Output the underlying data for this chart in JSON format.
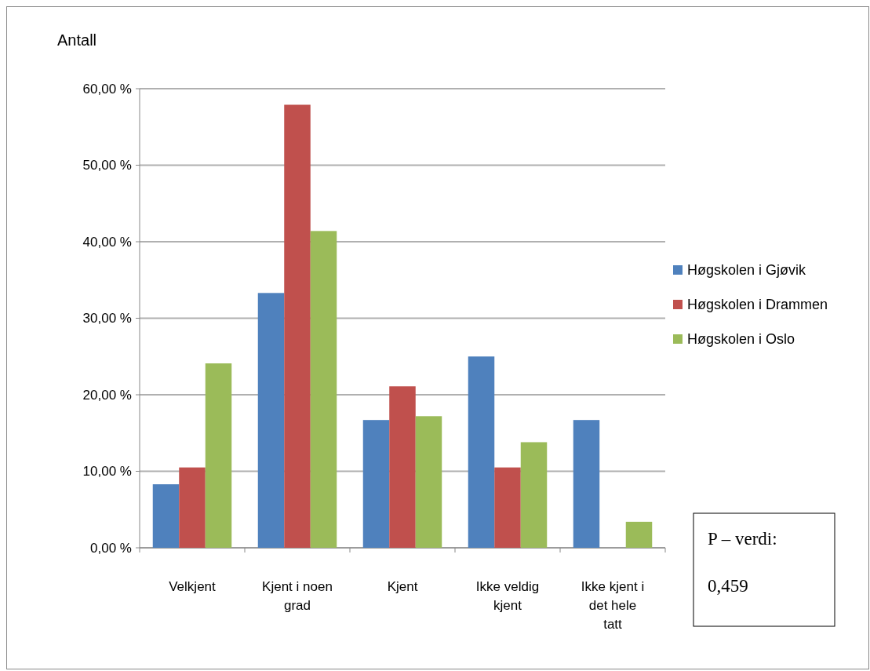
{
  "chart_data": {
    "type": "bar",
    "ylabel": "Antall",
    "categories": [
      "Velkjent",
      "Kjent i noen grad",
      "Kjent",
      "Ikke veldig kjent",
      "Ikke kjent i det hele tatt"
    ],
    "series": [
      {
        "name": "Høgskolen i Gjøvik",
        "color": "#4f81bd",
        "values": [
          8.3,
          33.3,
          16.7,
          25.0,
          16.7
        ]
      },
      {
        "name": "Høgskolen i Drammen",
        "color": "#c0504d",
        "values": [
          10.5,
          57.9,
          21.1,
          10.5,
          0
        ]
      },
      {
        "name": "Høgskolen i Oslo",
        "color": "#9bbb59",
        "values": [
          24.1,
          41.4,
          17.2,
          13.8,
          3.4
        ]
      }
    ],
    "ylim": [
      0,
      60
    ],
    "yticks": [
      {
        "value": 0,
        "label": "0,00 %"
      },
      {
        "value": 10,
        "label": "10,00 %"
      },
      {
        "value": 20,
        "label": "20,00 %"
      },
      {
        "value": 30,
        "label": "30,00 %"
      },
      {
        "value": 40,
        "label": "40,00 %"
      },
      {
        "value": 50,
        "label": "50,00 %"
      },
      {
        "value": 60,
        "label": "60,00 %"
      }
    ],
    "grid": "y",
    "legend": "right",
    "annotations": [
      "P – verdi:",
      "0,459"
    ]
  }
}
